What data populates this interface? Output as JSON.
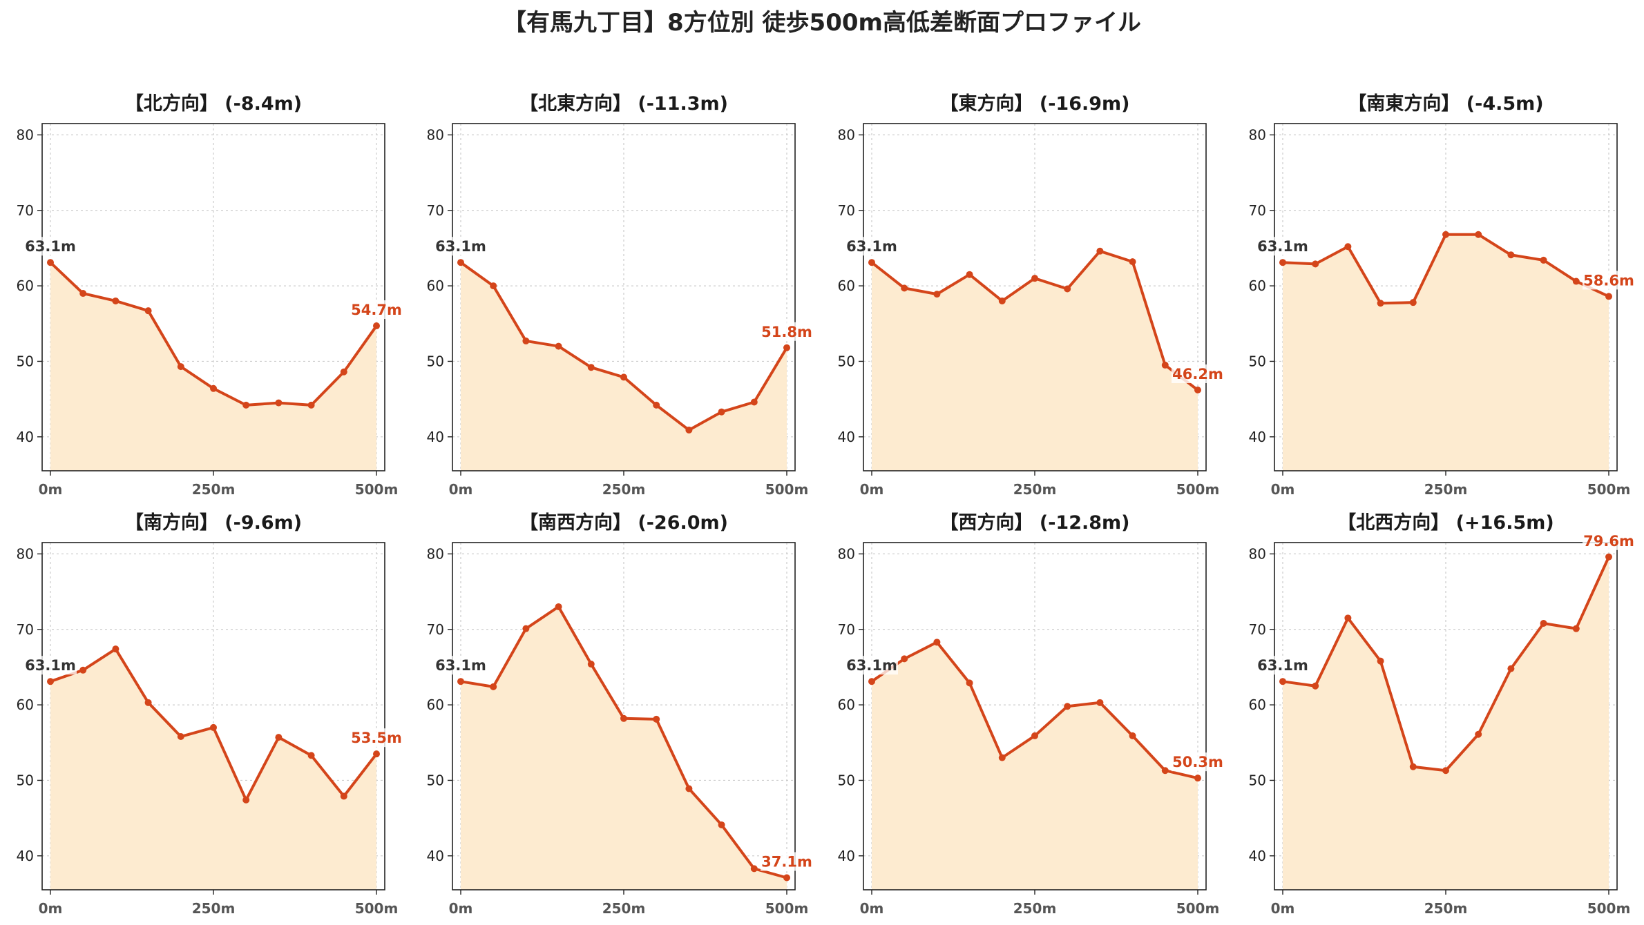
{
  "title": "【有馬九丁目】8方位別 徒歩500m高低差断面プロファイル",
  "colors": {
    "line": "#d4451a",
    "fill": "#fdebd0",
    "grid": "#cccccc",
    "start_label": "#333333",
    "end_label": "#d4451a"
  },
  "chart_data": [
    {
      "type": "area",
      "title": "【北方向】 (-8.4m)",
      "x": [
        0,
        50,
        100,
        150,
        200,
        250,
        300,
        350,
        400,
        450,
        500
      ],
      "y": [
        63.1,
        59.0,
        58.0,
        56.7,
        49.3,
        46.4,
        44.2,
        44.5,
        44.2,
        48.6,
        54.7
      ],
      "start_label": "63.1m",
      "end_label": "54.7m",
      "ylim": [
        35.5,
        81.5
      ],
      "yticks": [
        "40",
        "50",
        "60",
        "70",
        "80"
      ],
      "xticks": [
        "0m",
        "250m",
        "500m"
      ],
      "grid": true
    },
    {
      "type": "area",
      "title": "【北東方向】 (-11.3m)",
      "x": [
        0,
        50,
        100,
        150,
        200,
        250,
        300,
        350,
        400,
        450,
        500
      ],
      "y": [
        63.1,
        60.0,
        52.7,
        52.0,
        49.2,
        47.9,
        44.2,
        40.9,
        43.3,
        44.6,
        51.8
      ],
      "start_label": "63.1m",
      "end_label": "51.8m",
      "ylim": [
        35.5,
        81.5
      ],
      "yticks": [
        "40",
        "50",
        "60",
        "70",
        "80"
      ],
      "xticks": [
        "0m",
        "250m",
        "500m"
      ],
      "grid": true
    },
    {
      "type": "area",
      "title": "【東方向】 (-16.9m)",
      "x": [
        0,
        50,
        100,
        150,
        200,
        250,
        300,
        350,
        400,
        450,
        500
      ],
      "y": [
        63.1,
        59.7,
        58.9,
        61.5,
        58.0,
        61.0,
        59.6,
        64.6,
        63.2,
        49.5,
        46.2
      ],
      "start_label": "63.1m",
      "end_label": "46.2m",
      "ylim": [
        35.5,
        81.5
      ],
      "yticks": [
        "40",
        "50",
        "60",
        "70",
        "80"
      ],
      "xticks": [
        "0m",
        "250m",
        "500m"
      ],
      "grid": true
    },
    {
      "type": "area",
      "title": "【南東方向】 (-4.5m)",
      "x": [
        0,
        50,
        100,
        150,
        200,
        250,
        300,
        350,
        400,
        450,
        500
      ],
      "y": [
        63.1,
        62.9,
        65.2,
        57.7,
        57.8,
        66.8,
        66.8,
        64.1,
        63.4,
        60.6,
        58.6
      ],
      "start_label": "63.1m",
      "end_label": "58.6m",
      "ylim": [
        35.5,
        81.5
      ],
      "yticks": [
        "40",
        "50",
        "60",
        "70",
        "80"
      ],
      "xticks": [
        "0m",
        "250m",
        "500m"
      ],
      "grid": true
    },
    {
      "type": "area",
      "title": "【南方向】 (-9.6m)",
      "x": [
        0,
        50,
        100,
        150,
        200,
        250,
        300,
        350,
        400,
        450,
        500
      ],
      "y": [
        63.1,
        64.6,
        67.4,
        60.3,
        55.8,
        57.0,
        47.4,
        55.7,
        53.3,
        47.9,
        53.5
      ],
      "start_label": "63.1m",
      "end_label": "53.5m",
      "ylim": [
        35.5,
        81.5
      ],
      "yticks": [
        "40",
        "50",
        "60",
        "70",
        "80"
      ],
      "xticks": [
        "0m",
        "250m",
        "500m"
      ],
      "grid": true
    },
    {
      "type": "area",
      "title": "【南西方向】 (-26.0m)",
      "x": [
        0,
        50,
        100,
        150,
        200,
        250,
        300,
        350,
        400,
        450,
        500
      ],
      "y": [
        63.1,
        62.4,
        70.1,
        73.0,
        65.4,
        58.2,
        58.1,
        48.9,
        44.1,
        38.3,
        37.1
      ],
      "start_label": "63.1m",
      "end_label": "37.1m",
      "ylim": [
        35.5,
        81.5
      ],
      "yticks": [
        "40",
        "50",
        "60",
        "70",
        "80"
      ],
      "xticks": [
        "0m",
        "250m",
        "500m"
      ],
      "grid": true
    },
    {
      "type": "area",
      "title": "【西方向】 (-12.8m)",
      "x": [
        0,
        50,
        100,
        150,
        200,
        250,
        300,
        350,
        400,
        450,
        500
      ],
      "y": [
        63.1,
        66.1,
        68.3,
        62.9,
        53.0,
        55.9,
        59.8,
        60.3,
        55.9,
        51.3,
        50.3
      ],
      "start_label": "63.1m",
      "end_label": "50.3m",
      "ylim": [
        35.5,
        81.5
      ],
      "yticks": [
        "40",
        "50",
        "60",
        "70",
        "80"
      ],
      "xticks": [
        "0m",
        "250m",
        "500m"
      ],
      "grid": true
    },
    {
      "type": "area",
      "title": "【北西方向】 (+16.5m)",
      "x": [
        0,
        50,
        100,
        150,
        200,
        250,
        300,
        350,
        400,
        450,
        500
      ],
      "y": [
        63.1,
        62.5,
        71.5,
        65.8,
        51.8,
        51.3,
        56.1,
        64.8,
        70.8,
        70.1,
        79.6
      ],
      "start_label": "63.1m",
      "end_label": "79.6m",
      "ylim": [
        35.5,
        81.5
      ],
      "yticks": [
        "40",
        "50",
        "60",
        "70",
        "80"
      ],
      "xticks": [
        "0m",
        "250m",
        "500m"
      ],
      "grid": true
    }
  ]
}
